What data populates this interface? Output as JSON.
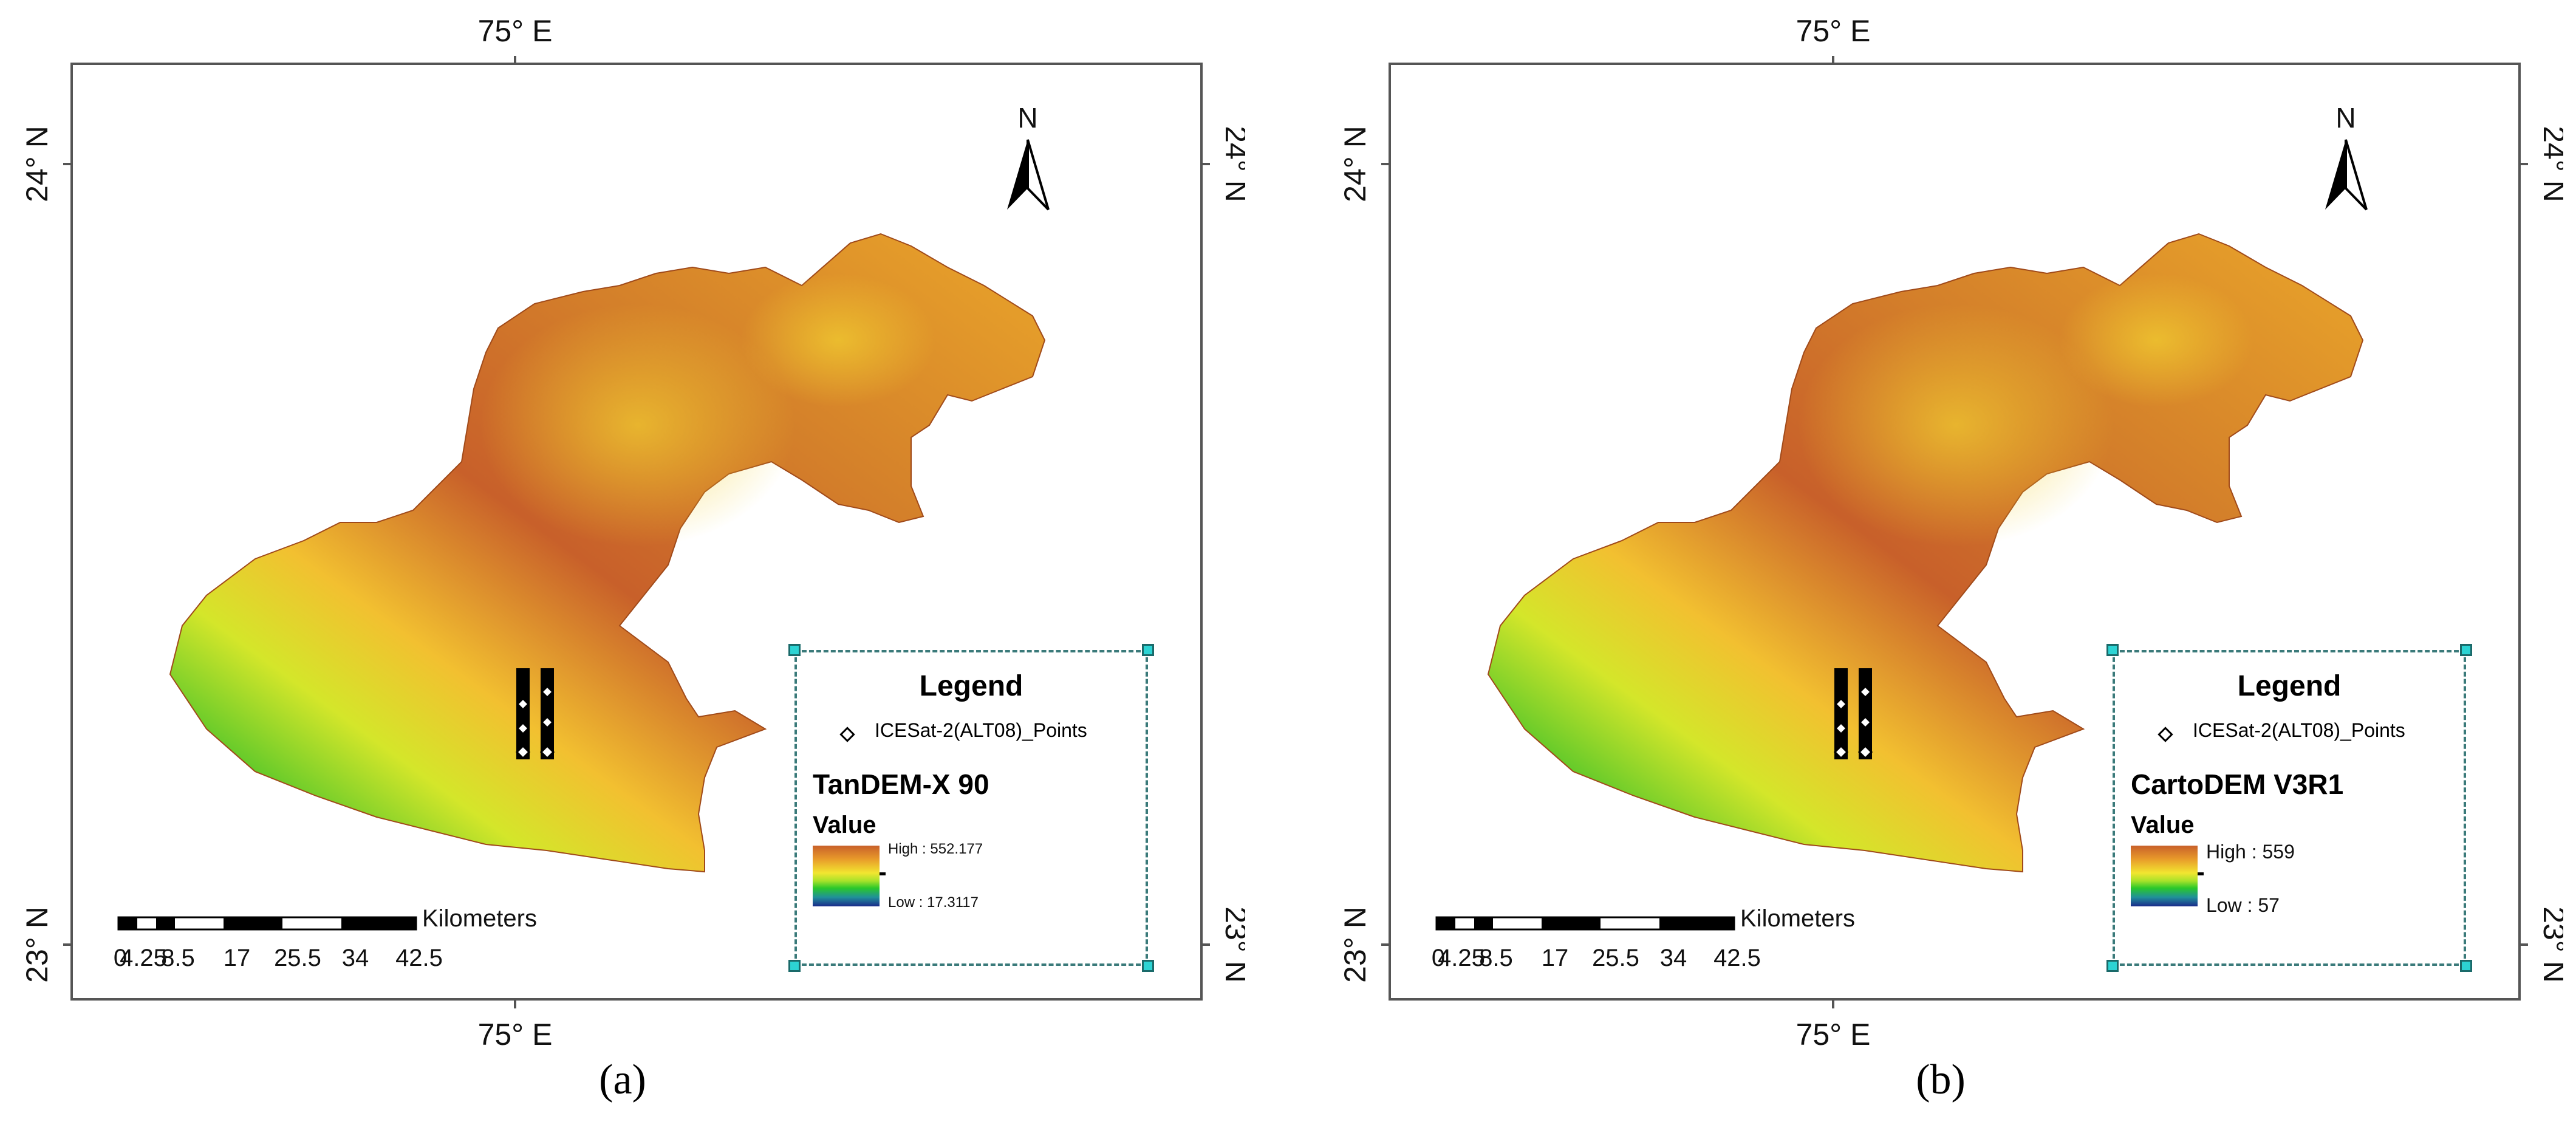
{
  "panels": [
    {
      "label": "(a)",
      "coords": {
        "top": "75° E",
        "bottom": "75° E",
        "left_top": "24° N",
        "left_bottom": "23° N",
        "right_top": "24° N",
        "right_bottom": "23° N"
      },
      "north": "N",
      "scale": {
        "unit": "Kilometers",
        "ticks": [
          "0",
          "4.25",
          "8.5",
          "17",
          "25.5",
          "34",
          "42.5"
        ]
      },
      "legend": {
        "title": "Legend",
        "points_label": "ICESat-2(ALT08)_Points",
        "dem_name": "TanDEM-X 90",
        "value_label": "Value",
        "high": "High : 552.177",
        "low": "Low : 17.3117"
      }
    },
    {
      "label": "(b)",
      "coords": {
        "top": "75° E",
        "bottom": "75° E",
        "left_top": "24° N",
        "left_bottom": "23° N",
        "right_top": "24° N",
        "right_bottom": "23° N"
      },
      "north": "N",
      "scale": {
        "unit": "Kilometers",
        "ticks": [
          "0",
          "4.25",
          "8.5",
          "17",
          "25.5",
          "34",
          "42.5"
        ]
      },
      "legend": {
        "title": "Legend",
        "points_label": "ICESat-2(ALT08)_Points",
        "dem_name": "CartoDEM V3R1",
        "value_label": "Value",
        "high": "High : 559",
        "low": "Low : 57"
      }
    }
  ],
  "colors": {
    "frame": "#555555",
    "legend_border": "#3a7a7a",
    "handle": "#2dd4d4",
    "elev_high": "#c8602a",
    "elev_mid": "#f2e630",
    "elev_low": "#1a2a8a"
  }
}
